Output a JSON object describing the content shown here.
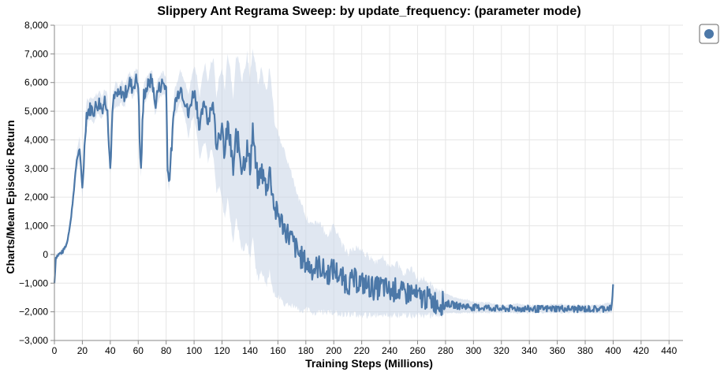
{
  "chart_data": {
    "type": "line",
    "title": "Slippery Ant Regrama Sweep: by update_frequency: (parameter mode)",
    "xlabel": "Training Steps (Millions)",
    "ylabel": "Charts/Mean Episodic Return",
    "xlim": [
      0,
      450
    ],
    "ylim": [
      -3000,
      8000
    ],
    "x_ticks": [
      0,
      20,
      40,
      60,
      80,
      100,
      120,
      140,
      160,
      180,
      200,
      220,
      240,
      260,
      280,
      300,
      320,
      340,
      360,
      380,
      400,
      420,
      440
    ],
    "y_ticks": [
      -3000,
      -2000,
      -1000,
      0,
      1000,
      2000,
      3000,
      4000,
      5000,
      6000,
      7000,
      8000
    ],
    "x_tick_labels": [
      "0",
      "20",
      "40",
      "60",
      "80",
      "100",
      "120",
      "140",
      "160",
      "180",
      "200",
      "220",
      "240",
      "260",
      "280",
      "300",
      "320",
      "340",
      "360",
      "380",
      "400",
      "420",
      "440"
    ],
    "y_tick_labels": [
      "−3,000",
      "−2,000",
      "−1,000",
      "0",
      "1,000",
      "2,000",
      "3,000",
      "4,000",
      "5,000",
      "6,000",
      "7,000",
      "8,000"
    ],
    "grid": true,
    "legend": "top-right",
    "colors": {
      "line": "#4c78a8",
      "band": "#c7d4e6"
    },
    "series": [
      {
        "x": [
          0,
          1,
          3,
          6,
          9,
          12,
          14,
          16,
          18,
          19,
          20,
          21,
          22,
          23,
          24,
          26,
          28,
          30,
          32,
          34,
          36,
          38,
          39,
          40,
          41,
          42,
          44,
          46,
          48,
          50,
          52,
          54,
          56,
          58,
          60,
          61,
          62,
          63,
          64,
          66,
          68,
          70,
          72,
          74,
          76,
          78,
          80,
          81,
          82,
          84,
          86,
          88,
          90,
          92,
          94,
          96,
          98,
          100,
          102,
          104,
          106,
          108,
          110,
          112,
          114,
          116,
          118,
          120,
          122,
          124,
          126,
          128,
          130,
          132,
          134,
          136,
          138,
          140,
          142,
          144,
          146,
          148,
          150,
          152,
          154,
          156,
          158,
          160,
          165,
          170,
          175,
          180,
          185,
          190,
          195,
          200,
          205,
          210,
          215,
          220,
          225,
          230,
          235,
          240,
          245,
          250,
          255,
          260,
          265,
          270,
          275,
          280,
          285,
          290,
          295,
          300,
          310,
          320,
          330,
          340,
          350,
          360,
          370,
          380,
          390,
          399,
          400
        ],
        "y": [
          -1000,
          -100,
          0,
          100,
          400,
          1300,
          2300,
          3300,
          3700,
          3000,
          2300,
          3200,
          4200,
          4900,
          5000,
          5100,
          5000,
          5200,
          5300,
          5100,
          5400,
          5200,
          3800,
          3000,
          4200,
          5300,
          5600,
          5500,
          5700,
          5500,
          5800,
          6000,
          5800,
          6100,
          6000,
          4000,
          2900,
          4500,
          5600,
          5800,
          6000,
          6100,
          5200,
          5700,
          5900,
          6000,
          5800,
          3200,
          2500,
          3800,
          5300,
          5500,
          5900,
          5600,
          5300,
          4800,
          5400,
          5700,
          5200,
          4400,
          5000,
          5300,
          4600,
          5200,
          5100,
          3800,
          4300,
          4200,
          3500,
          4500,
          3800,
          2900,
          4100,
          3800,
          3100,
          3300,
          3700,
          3000,
          4400,
          3100,
          2500,
          3000,
          2600,
          2300,
          3000,
          2200,
          1500,
          1400,
          900,
          500,
          0,
          -300,
          -500,
          -400,
          -700,
          -500,
          -800,
          -1000,
          -900,
          -1000,
          -1100,
          -1200,
          -1100,
          -1300,
          -1200,
          -1400,
          -1300,
          -1500,
          -1500,
          -1600,
          -1700,
          -1700,
          -1750,
          -1800,
          -1800,
          -1850,
          -1850,
          -1900,
          -1880,
          -1900,
          -1900,
          -1880,
          -1900,
          -1900,
          -1900,
          -1850,
          -1100
        ],
        "lower": [
          -1000,
          -200,
          -50,
          0,
          300,
          1100,
          2000,
          3000,
          3300,
          2600,
          2100,
          2900,
          3800,
          4500,
          4700,
          4800,
          4700,
          4900,
          5000,
          4800,
          5100,
          4900,
          3500,
          2800,
          3900,
          5000,
          5300,
          5200,
          5400,
          5200,
          5500,
          5700,
          5500,
          5800,
          5700,
          3700,
          2700,
          4200,
          5300,
          5500,
          5700,
          5800,
          4900,
          5400,
          5600,
          5700,
          5500,
          2900,
          2300,
          3500,
          4900,
          5100,
          5400,
          5100,
          4700,
          4100,
          4700,
          4900,
          4200,
          3400,
          3800,
          4000,
          3300,
          3800,
          3500,
          2300,
          2400,
          2000,
          1400,
          2100,
          1400,
          500,
          1400,
          900,
          300,
          300,
          500,
          -100,
          800,
          -300,
          -700,
          -400,
          -700,
          -900,
          -500,
          -1000,
          -1300,
          -1300,
          -1600,
          -1700,
          -1800,
          -1800,
          -1900,
          -1850,
          -1900,
          -1900,
          -1950,
          -1950,
          -1950,
          -2000,
          -2000,
          -2000,
          -2000,
          -2000,
          -2000,
          -2000,
          -2000,
          -2000,
          -2000,
          -2000,
          -2000,
          -2000,
          -2000,
          -2000,
          -2000,
          -2000,
          -2000,
          -2000,
          -2000,
          -2000,
          -2000,
          -2000,
          -2000,
          -2000,
          -2000,
          -2000,
          -1200
        ],
        "upper": [
          -1000,
          0,
          50,
          200,
          500,
          1500,
          2600,
          3600,
          4100,
          3400,
          2500,
          3500,
          4600,
          5300,
          5300,
          5400,
          5300,
          5500,
          5600,
          5400,
          5700,
          5500,
          4100,
          3200,
          4500,
          5600,
          5900,
          5800,
          6000,
          5800,
          6100,
          6300,
          6100,
          6400,
          6300,
          4300,
          3100,
          4800,
          5900,
          6100,
          6300,
          6400,
          5500,
          6000,
          6200,
          6300,
          6100,
          3500,
          2700,
          4100,
          5700,
          5900,
          6400,
          6100,
          5900,
          5500,
          6100,
          6500,
          6200,
          5400,
          6200,
          6600,
          5900,
          6600,
          6700,
          5300,
          6200,
          6400,
          5600,
          6900,
          6200,
          5300,
          6800,
          6700,
          5900,
          6300,
          6900,
          6100,
          7000,
          6500,
          5700,
          6400,
          5900,
          5500,
          6500,
          5400,
          4300,
          4100,
          3400,
          2700,
          1800,
          1200,
          900,
          1000,
          500,
          900,
          300,
          -100,
          100,
          0,
          -200,
          -400,
          -200,
          -600,
          -400,
          -800,
          -600,
          -1000,
          -1000,
          -1200,
          -1400,
          -1400,
          -1500,
          -1600,
          -1600,
          -1700,
          -1700,
          -1800,
          -1760,
          -1800,
          -1800,
          -1760,
          -1800,
          -1800,
          -1800,
          -1700,
          -1000
        ]
      }
    ]
  }
}
